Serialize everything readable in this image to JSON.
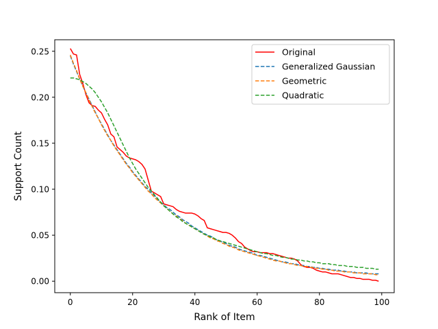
{
  "chart_data": {
    "type": "line",
    "title": "",
    "xlabel": "Rank of Item",
    "ylabel": "Support Count",
    "xlim": [
      -5,
      104
    ],
    "ylim": [
      -0.0125,
      0.2625
    ],
    "xticks": [
      0,
      20,
      40,
      60,
      80,
      100
    ],
    "xtick_labels": [
      "0",
      "20",
      "40",
      "60",
      "80",
      "100"
    ],
    "yticks": [
      0.0,
      0.05,
      0.1,
      0.15,
      0.2,
      0.25
    ],
    "ytick_labels": [
      "0.00",
      "0.05",
      "0.10",
      "0.15",
      "0.20",
      "0.25"
    ],
    "grid": false,
    "legend_position": "top-right",
    "x": [
      0,
      1,
      2,
      3,
      4,
      5,
      6,
      7,
      8,
      9,
      10,
      11,
      12,
      13,
      14,
      15,
      16,
      17,
      18,
      19,
      20,
      21,
      22,
      23,
      24,
      25,
      26,
      27,
      28,
      29,
      30,
      31,
      32,
      33,
      34,
      35,
      36,
      37,
      38,
      39,
      40,
      41,
      42,
      43,
      44,
      45,
      46,
      47,
      48,
      49,
      50,
      51,
      52,
      53,
      54,
      55,
      56,
      57,
      58,
      59,
      60,
      61,
      62,
      63,
      64,
      65,
      66,
      67,
      68,
      69,
      70,
      71,
      72,
      73,
      74,
      75,
      76,
      77,
      78,
      79,
      80,
      81,
      82,
      83,
      84,
      85,
      86,
      87,
      88,
      89,
      90,
      91,
      92,
      93,
      94,
      95,
      96,
      97,
      98,
      99
    ],
    "series": [
      {
        "name": "Original",
        "color": "#ff0000",
        "style": "solid",
        "values": [
          0.253,
          0.247,
          0.246,
          0.225,
          0.215,
          0.203,
          0.194,
          0.191,
          0.19,
          0.186,
          0.183,
          0.176,
          0.17,
          0.16,
          0.157,
          0.146,
          0.143,
          0.14,
          0.136,
          0.134,
          0.133,
          0.132,
          0.13,
          0.127,
          0.122,
          0.11,
          0.098,
          0.096,
          0.094,
          0.092,
          0.084,
          0.083,
          0.082,
          0.081,
          0.078,
          0.076,
          0.075,
          0.074,
          0.074,
          0.074,
          0.073,
          0.071,
          0.068,
          0.066,
          0.058,
          0.057,
          0.056,
          0.055,
          0.054,
          0.053,
          0.053,
          0.052,
          0.05,
          0.047,
          0.043,
          0.041,
          0.037,
          0.035,
          0.033,
          0.032,
          0.032,
          0.031,
          0.031,
          0.031,
          0.03,
          0.03,
          0.029,
          0.028,
          0.027,
          0.026,
          0.025,
          0.025,
          0.024,
          0.022,
          0.018,
          0.016,
          0.015,
          0.015,
          0.014,
          0.012,
          0.011,
          0.01,
          0.01,
          0.009,
          0.008,
          0.008,
          0.008,
          0.007,
          0.006,
          0.005,
          0.004,
          0.004,
          0.003,
          0.003,
          0.002,
          0.002,
          0.002,
          0.001,
          0.001,
          0.0
        ]
      },
      {
        "name": "Generalized Gaussian",
        "color": "#1f77b4",
        "style": "dashed",
        "values": [
          0.245,
          0.236,
          0.228,
          0.22,
          0.212,
          0.205,
          0.198,
          0.191,
          0.184,
          0.177,
          0.171,
          0.165,
          0.159,
          0.153,
          0.148,
          0.143,
          0.138,
          0.133,
          0.128,
          0.124,
          0.119,
          0.115,
          0.111,
          0.107,
          0.103,
          0.1,
          0.096,
          0.093,
          0.089,
          0.086,
          0.083,
          0.08,
          0.078,
          0.075,
          0.072,
          0.07,
          0.067,
          0.065,
          0.063,
          0.06,
          0.058,
          0.056,
          0.054,
          0.052,
          0.05,
          0.049,
          0.047,
          0.045,
          0.044,
          0.042,
          0.041,
          0.039,
          0.038,
          0.037,
          0.035,
          0.034,
          0.033,
          0.032,
          0.031,
          0.03,
          0.028,
          0.028,
          0.027,
          0.026,
          0.025,
          0.024,
          0.023,
          0.022,
          0.021,
          0.021,
          0.02,
          0.019,
          0.019,
          0.018,
          0.017,
          0.017,
          0.016,
          0.016,
          0.015,
          0.015,
          0.014,
          0.014,
          0.013,
          0.013,
          0.012,
          0.012,
          0.012,
          0.011,
          0.011,
          0.01,
          0.01,
          0.01,
          0.009,
          0.009,
          0.009,
          0.009,
          0.008,
          0.008,
          0.008,
          0.008
        ]
      },
      {
        "name": "Geometric",
        "color": "#ff7f0e",
        "style": "dashed",
        "values": [
          0.246,
          0.237,
          0.229,
          0.22,
          0.212,
          0.205,
          0.197,
          0.19,
          0.183,
          0.177,
          0.17,
          0.164,
          0.158,
          0.153,
          0.147,
          0.142,
          0.137,
          0.132,
          0.127,
          0.123,
          0.118,
          0.114,
          0.11,
          0.106,
          0.102,
          0.098,
          0.095,
          0.091,
          0.088,
          0.085,
          0.082,
          0.079,
          0.076,
          0.073,
          0.071,
          0.068,
          0.066,
          0.063,
          0.061,
          0.059,
          0.057,
          0.055,
          0.053,
          0.051,
          0.049,
          0.047,
          0.046,
          0.044,
          0.043,
          0.041,
          0.04,
          0.038,
          0.037,
          0.036,
          0.034,
          0.033,
          0.032,
          0.031,
          0.03,
          0.029,
          0.028,
          0.027,
          0.026,
          0.025,
          0.024,
          0.023,
          0.022,
          0.022,
          0.021,
          0.02,
          0.019,
          0.019,
          0.018,
          0.017,
          0.017,
          0.016,
          0.016,
          0.015,
          0.015,
          0.014,
          0.014,
          0.013,
          0.013,
          0.012,
          0.012,
          0.011,
          0.011,
          0.011,
          0.01,
          0.01,
          0.01,
          0.009,
          0.009,
          0.009,
          0.008,
          0.008,
          0.008,
          0.008,
          0.007,
          0.007
        ]
      },
      {
        "name": "Quadratic",
        "color": "#2ca02c",
        "style": "dashed",
        "values": [
          0.221,
          0.221,
          0.22,
          0.219,
          0.217,
          0.215,
          0.212,
          0.209,
          0.205,
          0.2,
          0.195,
          0.189,
          0.183,
          0.176,
          0.169,
          0.162,
          0.155,
          0.148,
          0.141,
          0.134,
          0.128,
          0.122,
          0.117,
          0.112,
          0.107,
          0.102,
          0.098,
          0.094,
          0.09,
          0.086,
          0.082,
          0.079,
          0.076,
          0.073,
          0.07,
          0.068,
          0.065,
          0.063,
          0.061,
          0.059,
          0.057,
          0.055,
          0.053,
          0.051,
          0.05,
          0.048,
          0.047,
          0.045,
          0.044,
          0.043,
          0.042,
          0.041,
          0.04,
          0.039,
          0.038,
          0.037,
          0.036,
          0.035,
          0.034,
          0.033,
          0.032,
          0.031,
          0.03,
          0.03,
          0.029,
          0.028,
          0.028,
          0.027,
          0.026,
          0.026,
          0.025,
          0.024,
          0.024,
          0.023,
          0.023,
          0.022,
          0.022,
          0.021,
          0.021,
          0.02,
          0.02,
          0.019,
          0.019,
          0.019,
          0.018,
          0.018,
          0.017,
          0.017,
          0.017,
          0.016,
          0.016,
          0.016,
          0.015,
          0.015,
          0.015,
          0.014,
          0.014,
          0.014,
          0.013,
          0.013
        ]
      }
    ]
  }
}
